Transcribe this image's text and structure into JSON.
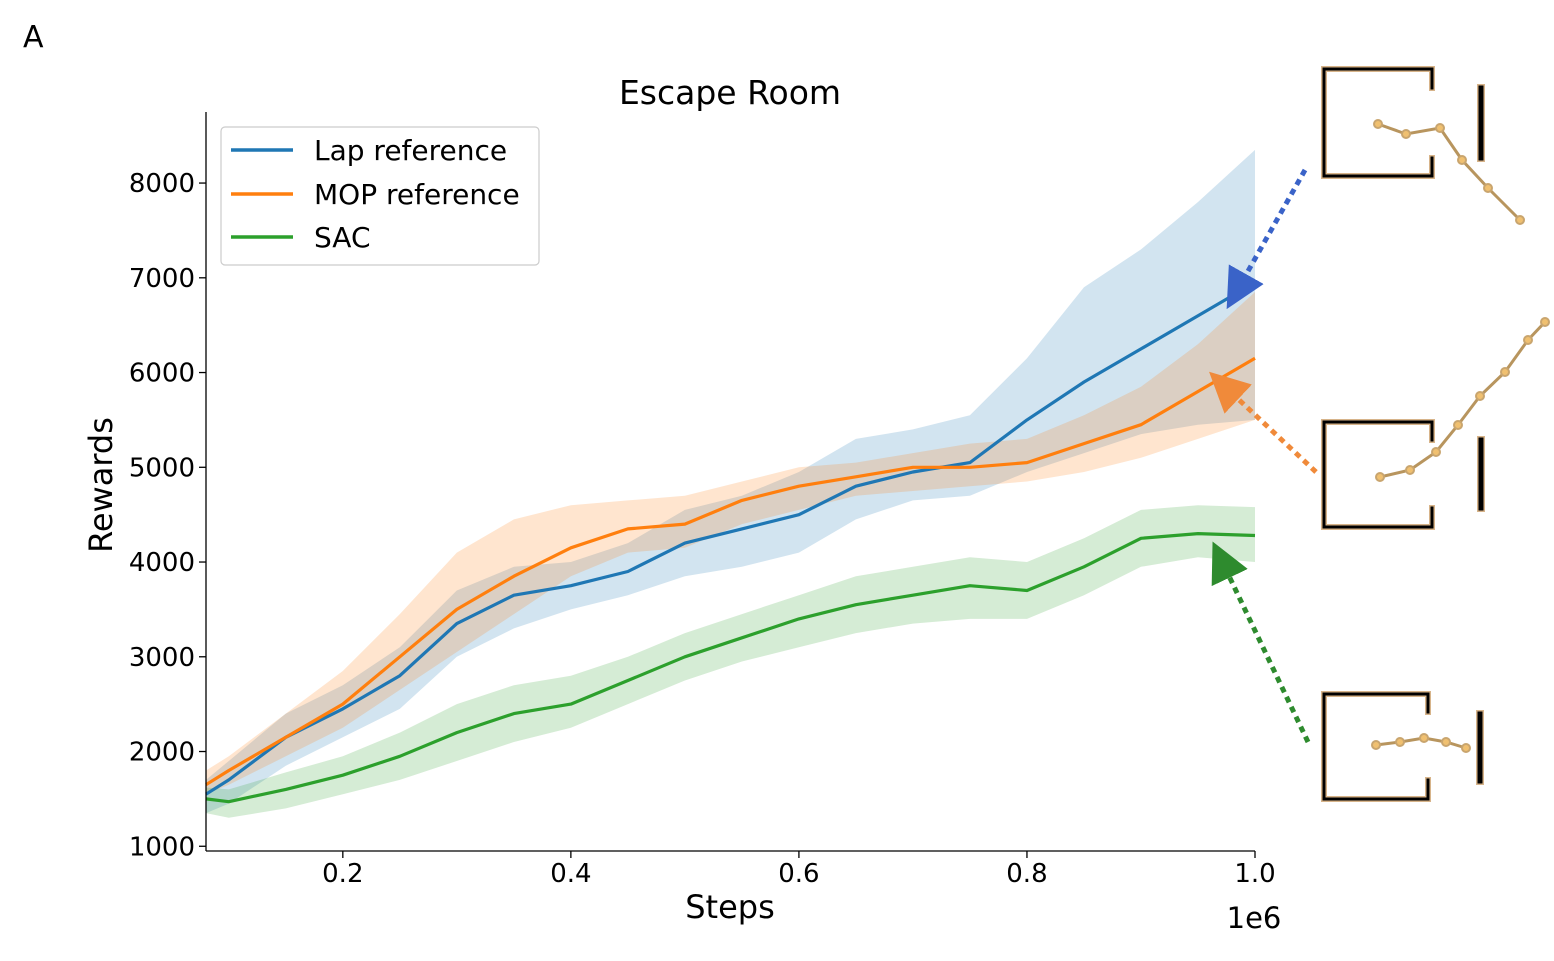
{
  "panel_label": "A",
  "chart_data": {
    "type": "line",
    "title": "Escape Room",
    "xlabel": "Steps",
    "ylabel": "Rewards",
    "x_offset_label": "1e6",
    "xlim": [
      0.08,
      1.0
    ],
    "ylim": [
      950,
      8750
    ],
    "xticks": [
      0.2,
      0.4,
      0.6,
      0.8,
      1.0
    ],
    "xtick_labels": [
      "0.2",
      "0.4",
      "0.6",
      "0.8",
      "1.0"
    ],
    "yticks": [
      1000,
      2000,
      3000,
      4000,
      5000,
      6000,
      7000,
      8000
    ],
    "ytick_labels": [
      "1000",
      "2000",
      "3000",
      "4000",
      "5000",
      "6000",
      "7000",
      "8000"
    ],
    "grid": false,
    "legend_position": "top-left",
    "x": [
      0.08,
      0.1,
      0.15,
      0.2,
      0.25,
      0.3,
      0.35,
      0.4,
      0.45,
      0.5,
      0.55,
      0.6,
      0.65,
      0.7,
      0.75,
      0.8,
      0.85,
      0.9,
      0.95,
      1.0
    ],
    "series": [
      {
        "name": "Lap reference",
        "color": "#1f77b4",
        "values": [
          1550,
          1700,
          2150,
          2450,
          2800,
          3350,
          3650,
          3750,
          3900,
          4200,
          4350,
          4500,
          4800,
          4950,
          5050,
          5500,
          5900,
          6250,
          6600,
          6950
        ],
        "lower": [
          1350,
          1450,
          1850,
          2150,
          2450,
          3000,
          3300,
          3500,
          3650,
          3850,
          3950,
          4100,
          4450,
          4650,
          4700,
          4950,
          5150,
          5350,
          5450,
          5500
        ],
        "upper": [
          1700,
          1900,
          2400,
          2700,
          3100,
          3700,
          3950,
          4000,
          4200,
          4550,
          4700,
          4950,
          5300,
          5400,
          5550,
          6150,
          6900,
          7300,
          7800,
          8350
        ]
      },
      {
        "name": "MOP reference",
        "color": "#ff7f0e",
        "values": [
          1650,
          1800,
          2150,
          2500,
          3000,
          3500,
          3850,
          4150,
          4350,
          4400,
          4650,
          4800,
          4900,
          5000,
          5000,
          5050,
          5250,
          5450,
          5800,
          6150
        ],
        "lower": [
          1550,
          1650,
          1950,
          2250,
          2650,
          3050,
          3450,
          3850,
          4100,
          4150,
          4400,
          4550,
          4700,
          4750,
          4800,
          4850,
          4950,
          5100,
          5300,
          5500
        ],
        "upper": [
          1800,
          1950,
          2400,
          2850,
          3450,
          4100,
          4450,
          4600,
          4650,
          4700,
          4850,
          5000,
          5050,
          5150,
          5250,
          5300,
          5550,
          5850,
          6300,
          6850
        ]
      },
      {
        "name": "SAC",
        "color": "#2ca02c",
        "values": [
          1500,
          1470,
          1600,
          1750,
          1950,
          2200,
          2400,
          2500,
          2750,
          3000,
          3200,
          3400,
          3550,
          3650,
          3750,
          3700,
          3950,
          4250,
          4300,
          4280
        ],
        "lower": [
          1350,
          1300,
          1400,
          1550,
          1700,
          1900,
          2100,
          2250,
          2500,
          2750,
          2950,
          3100,
          3250,
          3350,
          3400,
          3400,
          3650,
          3950,
          4050,
          4000
        ],
        "upper": [
          1620,
          1600,
          1780,
          1950,
          2200,
          2500,
          2700,
          2800,
          3000,
          3250,
          3450,
          3650,
          3850,
          3950,
          4050,
          4000,
          4250,
          4550,
          4600,
          4580
        ]
      }
    ]
  }
}
